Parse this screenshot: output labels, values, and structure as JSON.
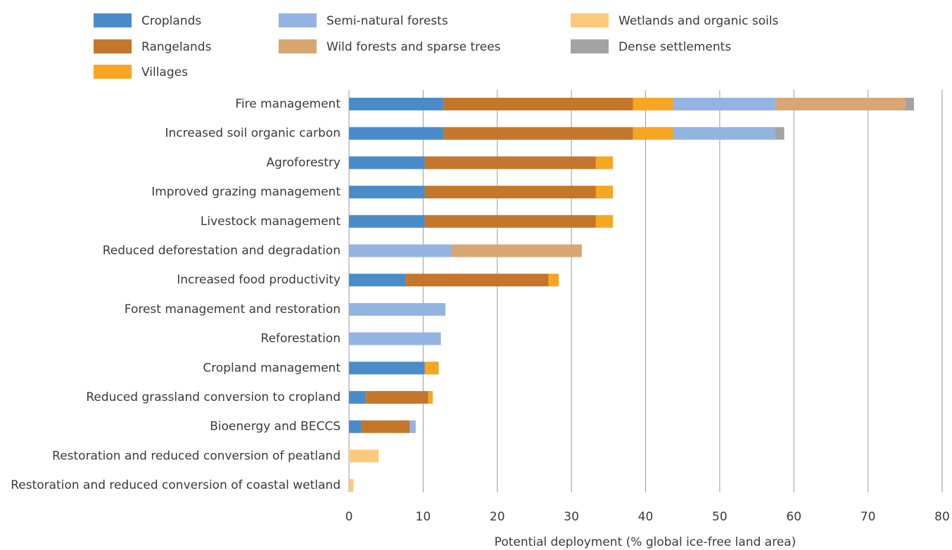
{
  "chart_data": {
    "type": "stacked-barh",
    "xlabel": "Potential deployment (% global ice-free land area)",
    "categories": [
      "Fire management",
      "Increased soil organic carbon",
      "Agroforestry",
      "Improved grazing management",
      "Livestock management",
      "Reduced deforestation and degradation",
      "Increased food productivity",
      "Forest management and restoration",
      "Reforestation",
      "Cropland management",
      "Reduced grassland conversion to cropland",
      "Bioenergy and BECCS",
      "Restoration and reduced conversion of peatland",
      "Restoration and reduced conversion of coastal wetland"
    ],
    "series": [
      {
        "name": "Croplands",
        "color": "#4a8cca",
        "values": [
          12.8,
          12.8,
          10.2,
          10.2,
          10.2,
          null,
          7.6,
          null,
          null,
          10.2,
          2.3,
          1.7,
          null,
          null
        ]
      },
      {
        "name": "Rangelands",
        "color": "#c4772a",
        "values": [
          25.5,
          25.5,
          23.1,
          23.1,
          23.1,
          null,
          19.3,
          null,
          null,
          null,
          8.4,
          6.5,
          null,
          null
        ]
      },
      {
        "name": "Villages",
        "color": "#f6a623",
        "values": [
          5.4,
          5.4,
          2.3,
          2.3,
          2.3,
          null,
          1.4,
          null,
          null,
          1.9,
          0.6,
          null,
          null,
          null
        ]
      },
      {
        "name": "Semi-natural forests",
        "color": "#93b4e0",
        "values": [
          13.8,
          13.8,
          null,
          null,
          null,
          13.8,
          null,
          13.0,
          12.4,
          null,
          null,
          0.8,
          null,
          null
        ]
      },
      {
        "name": "Wild forests and sparse trees",
        "color": "#d8a673",
        "values": [
          17.5,
          null,
          null,
          null,
          null,
          17.6,
          null,
          null,
          null,
          null,
          null,
          null,
          null,
          null
        ]
      },
      {
        "name": "Wetlands and organic soils",
        "color": "#fdc97d",
        "values": [
          null,
          null,
          null,
          null,
          null,
          null,
          null,
          null,
          null,
          null,
          null,
          null,
          4.0,
          0.6
        ]
      },
      {
        "name": "Dense settlements",
        "color": "#a3a3a3",
        "values": [
          1.2,
          1.2,
          null,
          null,
          null,
          null,
          null,
          null,
          null,
          null,
          null,
          null,
          null,
          null
        ]
      }
    ],
    "xlim": [
      0,
      80
    ],
    "xticks": [
      0,
      10,
      20,
      30,
      40,
      50,
      60,
      70,
      80
    ],
    "grid": true
  }
}
